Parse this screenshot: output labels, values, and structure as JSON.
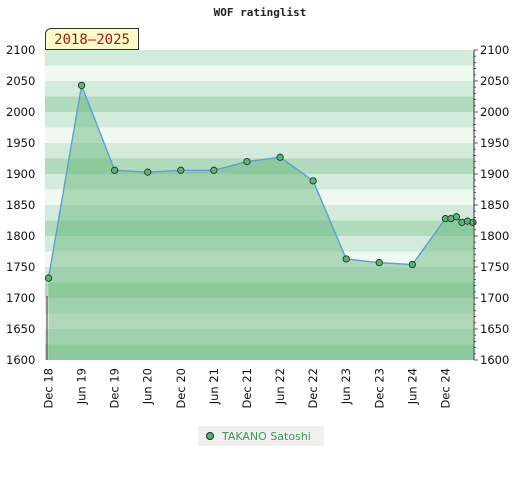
{
  "chart_data": {
    "type": "line",
    "title": "WOF ratinglist",
    "range_label": "2018–2025",
    "ylim": [
      1600,
      2100
    ],
    "yticks": [
      1600,
      1650,
      1700,
      1750,
      1800,
      1850,
      1900,
      1950,
      2000,
      2050,
      2100
    ],
    "x_tick_labels": [
      "Dec 18",
      "Jun 19",
      "Dec 19",
      "Jun 20",
      "Dec 20",
      "Jun 21",
      "Dec 21",
      "Jun 22",
      "Dec 22",
      "Jun 23",
      "Dec 23",
      "Jun 24",
      "Dec 24"
    ],
    "x_range": [
      "2018-12",
      "2025-05"
    ],
    "series": [
      {
        "name": "TAKANO Satoshi",
        "points": [
          {
            "x": "2018-12",
            "y": 1732
          },
          {
            "x": "2019-06",
            "y": 2043
          },
          {
            "x": "2019-12",
            "y": 1906
          },
          {
            "x": "2020-06",
            "y": 1903
          },
          {
            "x": "2020-12",
            "y": 1906
          },
          {
            "x": "2021-06",
            "y": 1906
          },
          {
            "x": "2021-12",
            "y": 1920
          },
          {
            "x": "2022-06",
            "y": 1927
          },
          {
            "x": "2022-12",
            "y": 1889
          },
          {
            "x": "2023-06",
            "y": 1763
          },
          {
            "x": "2023-12",
            "y": 1757
          },
          {
            "x": "2024-06",
            "y": 1754
          },
          {
            "x": "2024-12",
            "y": 1828
          },
          {
            "x": "2025-01",
            "y": 1828
          },
          {
            "x": "2025-02",
            "y": 1831
          },
          {
            "x": "2025-03",
            "y": 1822
          },
          {
            "x": "2025-04",
            "y": 1824
          },
          {
            "x": "2025-05",
            "y": 1822
          }
        ]
      }
    ],
    "legend_position": "bottom-center",
    "colors": {
      "line": "#5aa0d6",
      "area": "#5fb374",
      "marker": "#5ab46e",
      "band_dark": "#b1dbbd",
      "band_mid": "#d3ebda",
      "band_light": "#f0f8f2"
    }
  }
}
